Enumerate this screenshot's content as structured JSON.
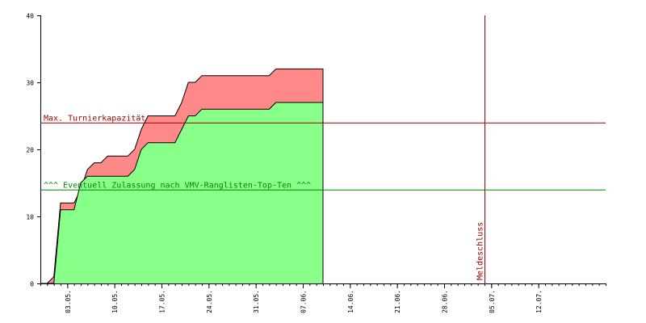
{
  "chart_data": {
    "type": "area",
    "xlim": [
      0,
      84
    ],
    "ylim": [
      0,
      40
    ],
    "grid": false,
    "y_ticks": [
      0,
      10,
      20,
      30,
      40
    ],
    "x_ticks": [
      {
        "day": 4,
        "label": "03.05."
      },
      {
        "day": 11,
        "label": "10.05."
      },
      {
        "day": 18,
        "label": "17.05."
      },
      {
        "day": 25,
        "label": "24.05."
      },
      {
        "day": 32,
        "label": "31.05."
      },
      {
        "day": 39,
        "label": "07.06."
      },
      {
        "day": 46,
        "label": "14.06."
      },
      {
        "day": 53,
        "label": "21.06."
      },
      {
        "day": 60,
        "label": "28.06."
      },
      {
        "day": 67,
        "label": "05.07."
      },
      {
        "day": 74,
        "label": "12.07."
      }
    ],
    "series": [
      {
        "color": "#ff8888",
        "x": [
          0,
          1,
          2,
          3,
          5,
          6,
          7,
          8,
          9,
          10,
          13,
          14,
          15,
          16,
          20,
          21,
          22,
          23,
          24,
          25,
          26,
          27,
          34,
          35,
          36,
          37,
          38,
          39,
          40,
          41,
          42
        ],
        "y": [
          0,
          0,
          1,
          12,
          12,
          14,
          17,
          18,
          18,
          19,
          19,
          20,
          23,
          25,
          25,
          27,
          30,
          30,
          31,
          31,
          31,
          31,
          31,
          32,
          32,
          32,
          32,
          32,
          32,
          32,
          32
        ]
      },
      {
        "color": "#88ff88",
        "x": [
          0,
          1,
          2,
          3,
          5,
          6,
          7,
          8,
          9,
          10,
          13,
          14,
          15,
          16,
          20,
          21,
          22,
          23,
          24,
          25,
          26,
          27,
          34,
          35,
          36,
          37,
          38,
          39,
          40,
          41,
          42
        ],
        "y": [
          0,
          0,
          0,
          11,
          11,
          15,
          16,
          16,
          16,
          16,
          16,
          17,
          20,
          21,
          21,
          23,
          25,
          25,
          26,
          26,
          26,
          26,
          26,
          27,
          27,
          27,
          27,
          27,
          27,
          27,
          27
        ]
      }
    ],
    "reference_lines": [
      {
        "orientation": "horizontal",
        "value": 24,
        "label": "Max. Turnierkapazität",
        "color": "#990000"
      },
      {
        "orientation": "horizontal",
        "value": 14,
        "label": "^^^ Eventuell Zulassung nach VMV-Ranglisten-Top-Ten ^^^",
        "color": "#008800"
      },
      {
        "orientation": "vertical",
        "value": 66,
        "label": "Meldeschluss",
        "color": "#990000"
      }
    ]
  }
}
